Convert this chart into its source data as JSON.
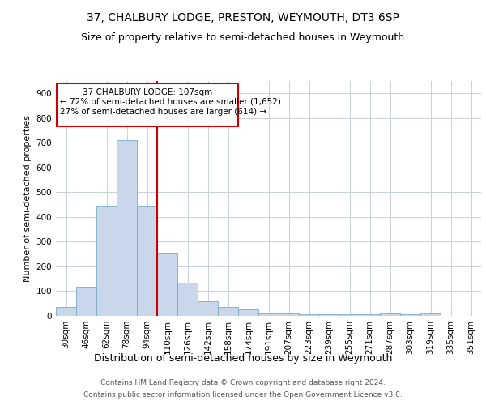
{
  "title1": "37, CHALBURY LODGE, PRESTON, WEYMOUTH, DT3 6SP",
  "title2": "Size of property relative to semi-detached houses in Weymouth",
  "xlabel": "Distribution of semi-detached houses by size in Weymouth",
  "ylabel": "Number of semi-detached properties",
  "categories": [
    "30sqm",
    "46sqm",
    "62sqm",
    "78sqm",
    "94sqm",
    "110sqm",
    "126sqm",
    "142sqm",
    "158sqm",
    "174sqm",
    "191sqm",
    "207sqm",
    "223sqm",
    "239sqm",
    "255sqm",
    "271sqm",
    "287sqm",
    "303sqm",
    "319sqm",
    "335sqm",
    "351sqm"
  ],
  "values": [
    35,
    118,
    445,
    710,
    445,
    255,
    135,
    60,
    37,
    27,
    10,
    10,
    8,
    8,
    8,
    8,
    10,
    8,
    10,
    0,
    0
  ],
  "bar_color": "#c8d8ea",
  "bar_edge_color": "#7aaac8",
  "vline_bin_index": 4,
  "annotation_text_line1": "37 CHALBURY LODGE: 107sqm",
  "annotation_text_line2": "← 72% of semi-detached houses are smaller (1,652)",
  "annotation_text_line3": "27% of semi-detached houses are larger (614) →",
  "annotation_box_color": "#ffffff",
  "annotation_border_color": "#cc0000",
  "vline_color": "#cc0000",
  "footer1": "Contains HM Land Registry data © Crown copyright and database right 2024.",
  "footer2": "Contains public sector information licensed under the Open Government Licence v3.0.",
  "ylim": [
    0,
    950
  ],
  "yticks": [
    0,
    100,
    200,
    300,
    400,
    500,
    600,
    700,
    800,
    900
  ],
  "background_color": "#ffffff",
  "grid_color": "#c8d0dc",
  "title1_fontsize": 10,
  "title2_fontsize": 9,
  "xlabel_fontsize": 9,
  "ylabel_fontsize": 8,
  "tick_fontsize": 7.5,
  "annotation_fontsize": 7.5,
  "footer_fontsize": 6.5
}
